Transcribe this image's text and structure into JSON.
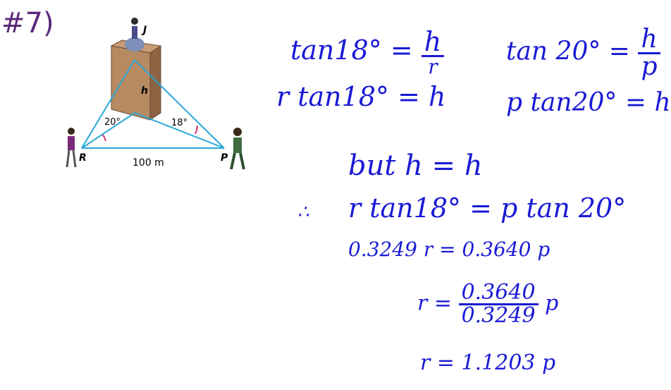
{
  "problem_number": "#7)",
  "figure": {
    "labels": {
      "top_point": "J",
      "height": "h",
      "left_point": "R",
      "right_point": "P",
      "base": "100 m",
      "left_angle": "20°",
      "right_angle": "18°"
    }
  },
  "work": {
    "left_eq1_lhs": "tan18° =",
    "left_eq1_num": "h",
    "left_eq1_den": "r",
    "left_eq2": "r tan18° = h",
    "right_eq1_lhs": "tan 20° =",
    "right_eq1_num": "h",
    "right_eq1_den": "p",
    "right_eq2": "p tan20° = h",
    "but": "but h = h",
    "therefore_symbol": "∴",
    "eq_combined": "r tan18° = p tan 20°",
    "eq_numeric": "0.3249 r = 0.3640 p",
    "eq_r_lhs": "r =",
    "eq_r_num": "0.3640",
    "eq_r_den": "0.3249",
    "eq_r_var": "p",
    "eq_final": "r = 1.1203 p"
  },
  "colors": {
    "ink": "#1a1ad6",
    "diagram_lines": "#2aa7d6",
    "angle_arcs": "#d8307a"
  }
}
